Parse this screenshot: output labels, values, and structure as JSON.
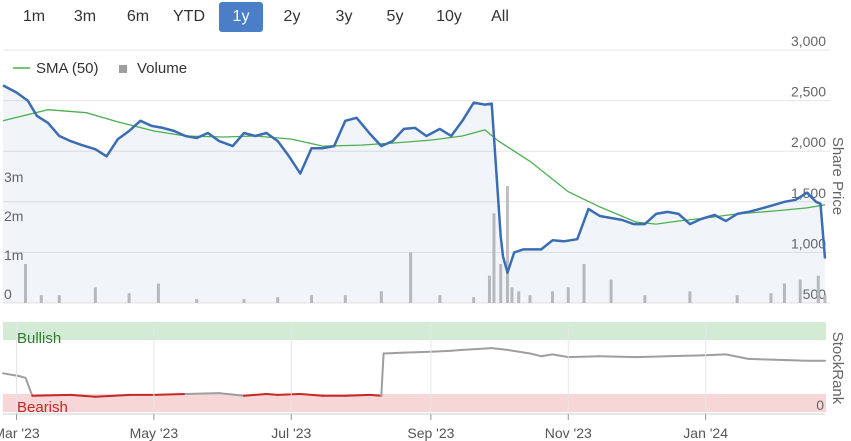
{
  "range_buttons": [
    {
      "label": "1m",
      "active": false
    },
    {
      "label": "3m",
      "active": false
    },
    {
      "label": "6m",
      "active": false
    },
    {
      "label": "YTD",
      "active": false
    },
    {
      "label": "1y",
      "active": true
    },
    {
      "label": "2y",
      "active": false
    },
    {
      "label": "3y",
      "active": false
    },
    {
      "label": "5y",
      "active": false
    },
    {
      "label": "10y",
      "active": false
    },
    {
      "label": "All",
      "active": false
    }
  ],
  "colors": {
    "price": "#3b6db3",
    "sma": "#4caf50",
    "volume": "#bfbfbf",
    "stockrank": "#9e9e9e",
    "bullish_band": "#d3ead5",
    "bearish_band": "#f6d6d6",
    "bullish_text": "#2e7d32",
    "bearish_text": "#c62828",
    "active_button": "#4a7fc8"
  },
  "chart_data": [
    {
      "type": "line",
      "title": "",
      "legend": {
        "placement": "top-left",
        "entries": [
          "SMA (50)",
          "Volume"
        ]
      },
      "y_right_label": "Share Price",
      "y_right_ticks": [
        3000,
        2500,
        2000,
        1500,
        1000,
        500
      ],
      "y_right_tick_labels": [
        "3,000",
        "2,500",
        "2,000",
        "1,500",
        "1,000",
        "500"
      ],
      "y_right_range": [
        500,
        3000
      ],
      "volume_axis_ticks": [
        "3m",
        "2m",
        "1m",
        "0"
      ],
      "volume_axis_values": [
        3000000,
        2000000,
        1000000,
        0
      ],
      "x_ticks": [
        "Mar '23",
        "May '23",
        "Jul '23",
        "Sep '23",
        "Nov '23",
        "Jan '24"
      ],
      "x_tick_dates": [
        "2023-03-01",
        "2023-05-01",
        "2023-07-01",
        "2023-09-01",
        "2023-11-01",
        "2024-01-01"
      ],
      "x_range": [
        "2023-02-23",
        "2024-02-23"
      ],
      "grid": true,
      "series": [
        {
          "name": "Share Price",
          "x": [
            "2023-02-23",
            "2023-03-01",
            "2023-03-06",
            "2023-03-10",
            "2023-03-15",
            "2023-03-20",
            "2023-03-25",
            "2023-03-30",
            "2023-04-05",
            "2023-04-10",
            "2023-04-15",
            "2023-04-20",
            "2023-04-25",
            "2023-04-30",
            "2023-05-05",
            "2023-05-10",
            "2023-05-15",
            "2023-05-20",
            "2023-05-25",
            "2023-05-30",
            "2023-06-05",
            "2023-06-10",
            "2023-06-15",
            "2023-06-20",
            "2023-06-25",
            "2023-06-30",
            "2023-07-05",
            "2023-07-10",
            "2023-07-15",
            "2023-07-20",
            "2023-07-25",
            "2023-07-30",
            "2023-08-05",
            "2023-08-10",
            "2023-08-15",
            "2023-08-20",
            "2023-08-25",
            "2023-08-30",
            "2023-09-05",
            "2023-09-10",
            "2023-09-15",
            "2023-09-20",
            "2023-09-25",
            "2023-09-28",
            "2023-10-02",
            "2023-10-03",
            "2023-10-05",
            "2023-10-08",
            "2023-10-12",
            "2023-10-16",
            "2023-10-20",
            "2023-10-25",
            "2023-10-30",
            "2023-11-05",
            "2023-11-10",
            "2023-11-15",
            "2023-11-20",
            "2023-11-25",
            "2023-11-30",
            "2023-12-05",
            "2023-12-10",
            "2023-12-15",
            "2023-12-20",
            "2023-12-25",
            "2023-12-30",
            "2024-01-05",
            "2024-01-10",
            "2024-01-15",
            "2024-01-20",
            "2024-01-25",
            "2024-01-30",
            "2024-02-05",
            "2024-02-10",
            "2024-02-15",
            "2024-02-19",
            "2024-02-21",
            "2024-02-23"
          ],
          "y": [
            2650,
            2580,
            2500,
            2350,
            2280,
            2150,
            2100,
            2060,
            2020,
            1950,
            2120,
            2200,
            2300,
            2250,
            2230,
            2200,
            2150,
            2130,
            2180,
            2100,
            2050,
            2180,
            2150,
            2180,
            2100,
            1950,
            1780,
            2030,
            2030,
            2050,
            2300,
            2330,
            2170,
            2050,
            2100,
            2220,
            2230,
            2150,
            2220,
            2150,
            2300,
            2480,
            2460,
            2470,
            1160,
            960,
            800,
            1000,
            1030,
            1030,
            1030,
            1120,
            1110,
            1130,
            1430,
            1360,
            1340,
            1320,
            1280,
            1280,
            1380,
            1400,
            1380,
            1280,
            1330,
            1370,
            1310,
            1380,
            1400,
            1430,
            1460,
            1500,
            1520,
            1590,
            1500,
            1480,
            940
          ]
        },
        {
          "name": "SMA (50)",
          "x": [
            "2023-02-23",
            "2023-03-15",
            "2023-04-01",
            "2023-04-15",
            "2023-05-01",
            "2023-05-15",
            "2023-06-01",
            "2023-06-15",
            "2023-07-01",
            "2023-07-15",
            "2023-08-01",
            "2023-08-15",
            "2023-09-01",
            "2023-09-15",
            "2023-09-25",
            "2023-10-01",
            "2023-10-15",
            "2023-11-01",
            "2023-11-15",
            "2023-12-01",
            "2023-12-10",
            "2023-12-20",
            "2024-01-01",
            "2024-01-15",
            "2024-02-01",
            "2024-02-15",
            "2024-02-23"
          ],
          "y": [
            2300,
            2410,
            2380,
            2290,
            2200,
            2150,
            2140,
            2150,
            2120,
            2050,
            2060,
            2080,
            2110,
            2150,
            2210,
            2100,
            1900,
            1600,
            1450,
            1300,
            1280,
            1310,
            1340,
            1380,
            1410,
            1440,
            1470
          ]
        },
        {
          "name": "Volume",
          "x": [
            "2023-03-05",
            "2023-03-12",
            "2023-03-20",
            "2023-04-05",
            "2023-04-20",
            "2023-05-03",
            "2023-05-20",
            "2023-06-10",
            "2023-06-25",
            "2023-07-10",
            "2023-07-25",
            "2023-08-10",
            "2023-08-23",
            "2023-09-05",
            "2023-09-20",
            "2023-09-27",
            "2023-09-29",
            "2023-10-02",
            "2023-10-05",
            "2023-10-07",
            "2023-10-10",
            "2023-10-15",
            "2023-10-25",
            "2023-11-01",
            "2023-11-08",
            "2023-11-20",
            "2023-12-05",
            "2023-12-25",
            "2024-01-15",
            "2024-01-30",
            "2024-02-05",
            "2024-02-12",
            "2024-02-20",
            "2024-02-23"
          ],
          "y": [
            1000000,
            200000,
            200000,
            400000,
            250000,
            500000,
            100000,
            100000,
            150000,
            200000,
            200000,
            300000,
            1300000,
            200000,
            150000,
            700000,
            2300000,
            1000000,
            3000000,
            400000,
            300000,
            200000,
            300000,
            400000,
            1000000,
            600000,
            200000,
            300000,
            200000,
            250000,
            500000,
            600000,
            700000,
            200000
          ]
        }
      ]
    },
    {
      "type": "line",
      "title": "",
      "y_right_label": "StockRank",
      "y_right_ticks": [
        0
      ],
      "y_right_tick_labels": [
        "0"
      ],
      "y_range": [
        0,
        100
      ],
      "bands": [
        {
          "label": "Bullish",
          "from": 80,
          "to": 100
        },
        {
          "label": "Bearish",
          "from": 0,
          "to": 20
        }
      ],
      "series": [
        {
          "name": "StockRank",
          "x": [
            "2023-02-23",
            "2023-03-02",
            "2023-03-05",
            "2023-03-08",
            "2023-03-25",
            "2023-04-05",
            "2023-04-20",
            "2023-05-01",
            "2023-05-15",
            "2023-05-30",
            "2023-06-10",
            "2023-06-20",
            "2023-06-25",
            "2023-07-05",
            "2023-07-15",
            "2023-07-25",
            "2023-08-05",
            "2023-08-10",
            "2023-08-11",
            "2023-08-20",
            "2023-09-01",
            "2023-09-10",
            "2023-09-15",
            "2023-09-22",
            "2023-09-28",
            "2023-10-05",
            "2023-10-15",
            "2023-10-20",
            "2023-10-25",
            "2023-11-01",
            "2023-11-15",
            "2023-12-01",
            "2023-12-15",
            "2024-01-01",
            "2024-01-10",
            "2024-01-20",
            "2024-02-01",
            "2024-02-15",
            "2024-02-23"
          ],
          "y": [
            43,
            40,
            38,
            18,
            19,
            17,
            19,
            19,
            20,
            21,
            18,
            20,
            19,
            20,
            18,
            18,
            19,
            18,
            65,
            66,
            67,
            68,
            69,
            70,
            71,
            69,
            65,
            62,
            64,
            61,
            62,
            61,
            62,
            63,
            64,
            59,
            58,
            57,
            57
          ]
        }
      ]
    }
  ]
}
